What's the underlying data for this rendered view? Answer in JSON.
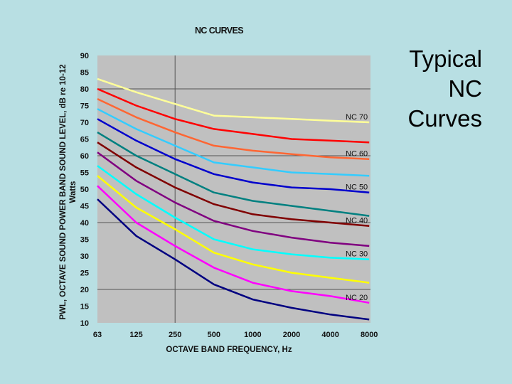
{
  "slide": {
    "title_lines": [
      "Typical",
      "NC",
      "Curves"
    ]
  },
  "chart_data": {
    "type": "line",
    "title": "NC CURVES",
    "xlabel": "OCTAVE BAND FREQUENCY, Hz",
    "ylabel_lines": [
      "PWL, OCTAVE SOUND POWER BAND SOUND LEVEL, dB re 10-12",
      "Watts"
    ],
    "x": [
      "63",
      "125",
      "250",
      "500",
      "1000",
      "2000",
      "4000",
      "8000"
    ],
    "yticks": [
      10,
      15,
      20,
      25,
      30,
      35,
      40,
      45,
      50,
      55,
      60,
      65,
      70,
      75,
      80,
      85,
      90
    ],
    "ylim": [
      10,
      90
    ],
    "grid": "horizontal at 20, 40, 60, 80; vertical at 250",
    "series": [
      {
        "name": "NC 70",
        "color": "#ffff99",
        "values": [
          83,
          79,
          75.5,
          72,
          71.5,
          71,
          70.5,
          70
        ]
      },
      {
        "name": "",
        "color": "#ff0000",
        "values": [
          80,
          75,
          71,
          68,
          66.5,
          65,
          64.5,
          64
        ]
      },
      {
        "name": "NC 60",
        "color": "#ff6633",
        "values": [
          77,
          71.5,
          67,
          63,
          61.5,
          60.5,
          59.5,
          59
        ]
      },
      {
        "name": "",
        "color": "#33ccff",
        "values": [
          74,
          68,
          63,
          58,
          56.5,
          55,
          54.5,
          54
        ]
      },
      {
        "name": "NC 50",
        "color": "#0000cc",
        "values": [
          71,
          64.5,
          59,
          54.5,
          52,
          50.5,
          50,
          49
        ]
      },
      {
        "name": "",
        "color": "#008080",
        "values": [
          67,
          60,
          54.5,
          49,
          46.5,
          45,
          43.5,
          42
        ]
      },
      {
        "name": "NC 40",
        "color": "#800000",
        "values": [
          64,
          56.5,
          50.5,
          45.5,
          42.5,
          41,
          40,
          39
        ]
      },
      {
        "name": "",
        "color": "#800080",
        "values": [
          61,
          52.5,
          46,
          40.5,
          37.5,
          35.5,
          34,
          33
        ]
      },
      {
        "name": "NC 30",
        "color": "#00ffff",
        "values": [
          57,
          48.5,
          41.5,
          35,
          32,
          30.5,
          29.5,
          29
        ]
      },
      {
        "name": "",
        "color": "#ffff00",
        "values": [
          54,
          44.5,
          38,
          31,
          27.5,
          25,
          23.5,
          22
        ]
      },
      {
        "name": "NC 20",
        "color": "#ff00ff",
        "values": [
          51,
          40,
          33,
          26.5,
          22,
          19.5,
          18,
          16
        ]
      },
      {
        "name": "",
        "color": "#000080",
        "values": [
          47,
          36,
          29,
          21.5,
          17,
          14.5,
          12.5,
          11
        ]
      }
    ]
  }
}
